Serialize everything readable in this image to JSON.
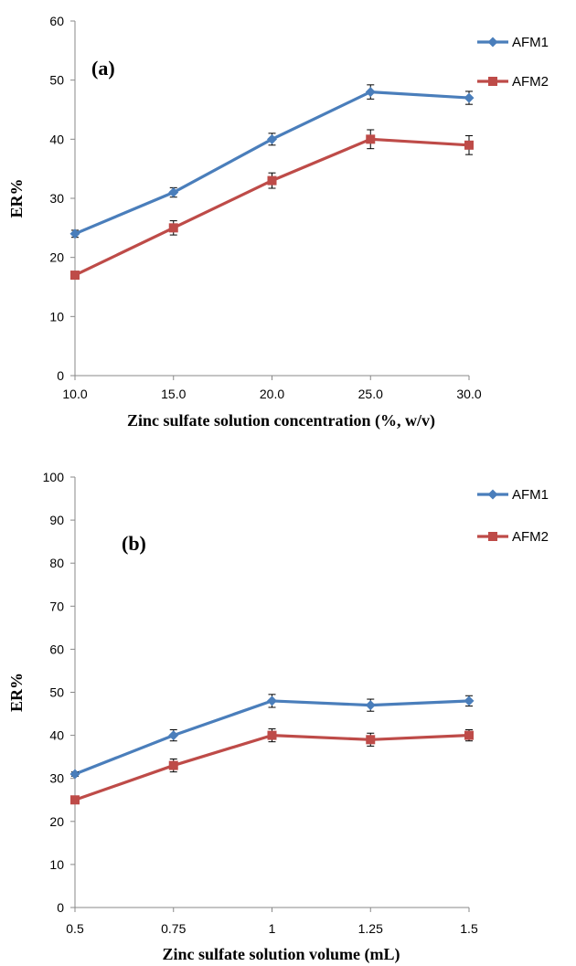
{
  "chart_data": [
    {
      "type": "line",
      "panel_label": "(a)",
      "title": "",
      "xlabel": "Zinc sulfate solution concentration (%, w/v)",
      "ylabel": "ER%",
      "categories": [
        "10.0",
        "15.0",
        "20.0",
        "25.0",
        "30.0"
      ],
      "ylim": [
        0,
        60
      ],
      "yticks": [
        0,
        10,
        20,
        30,
        40,
        50,
        60
      ],
      "grid": false,
      "legend_position": "right",
      "series": [
        {
          "name": "AFM1",
          "color": "#4a7ebb",
          "marker": "diamond",
          "values": [
            24,
            31,
            40,
            48,
            47
          ],
          "errors": [
            0.6,
            0.8,
            1.0,
            1.2,
            1.1
          ]
        },
        {
          "name": "AFM2",
          "color": "#be4b48",
          "marker": "square",
          "values": [
            17,
            25,
            33,
            40,
            39
          ],
          "errors": [
            0.6,
            1.2,
            1.3,
            1.6,
            1.6
          ]
        }
      ]
    },
    {
      "type": "line",
      "panel_label": "(b)",
      "title": "",
      "xlabel": "Zinc sulfate solution volume (mL)",
      "ylabel": "ER%",
      "categories": [
        "0.5",
        "0.75",
        "1",
        "1.25",
        "1.5"
      ],
      "ylim": [
        0,
        100
      ],
      "yticks": [
        0,
        10,
        20,
        30,
        40,
        50,
        60,
        70,
        80,
        90,
        100
      ],
      "grid": false,
      "legend_position": "right",
      "series": [
        {
          "name": "AFM1",
          "color": "#4a7ebb",
          "marker": "diamond",
          "values": [
            31,
            40,
            48,
            47,
            48
          ],
          "errors": [
            0.5,
            1.3,
            1.5,
            1.4,
            1.2
          ]
        },
        {
          "name": "AFM2",
          "color": "#be4b48",
          "marker": "square",
          "values": [
            25,
            33,
            40,
            39,
            40
          ],
          "errors": [
            0.5,
            1.5,
            1.5,
            1.5,
            1.3
          ]
        }
      ]
    }
  ]
}
